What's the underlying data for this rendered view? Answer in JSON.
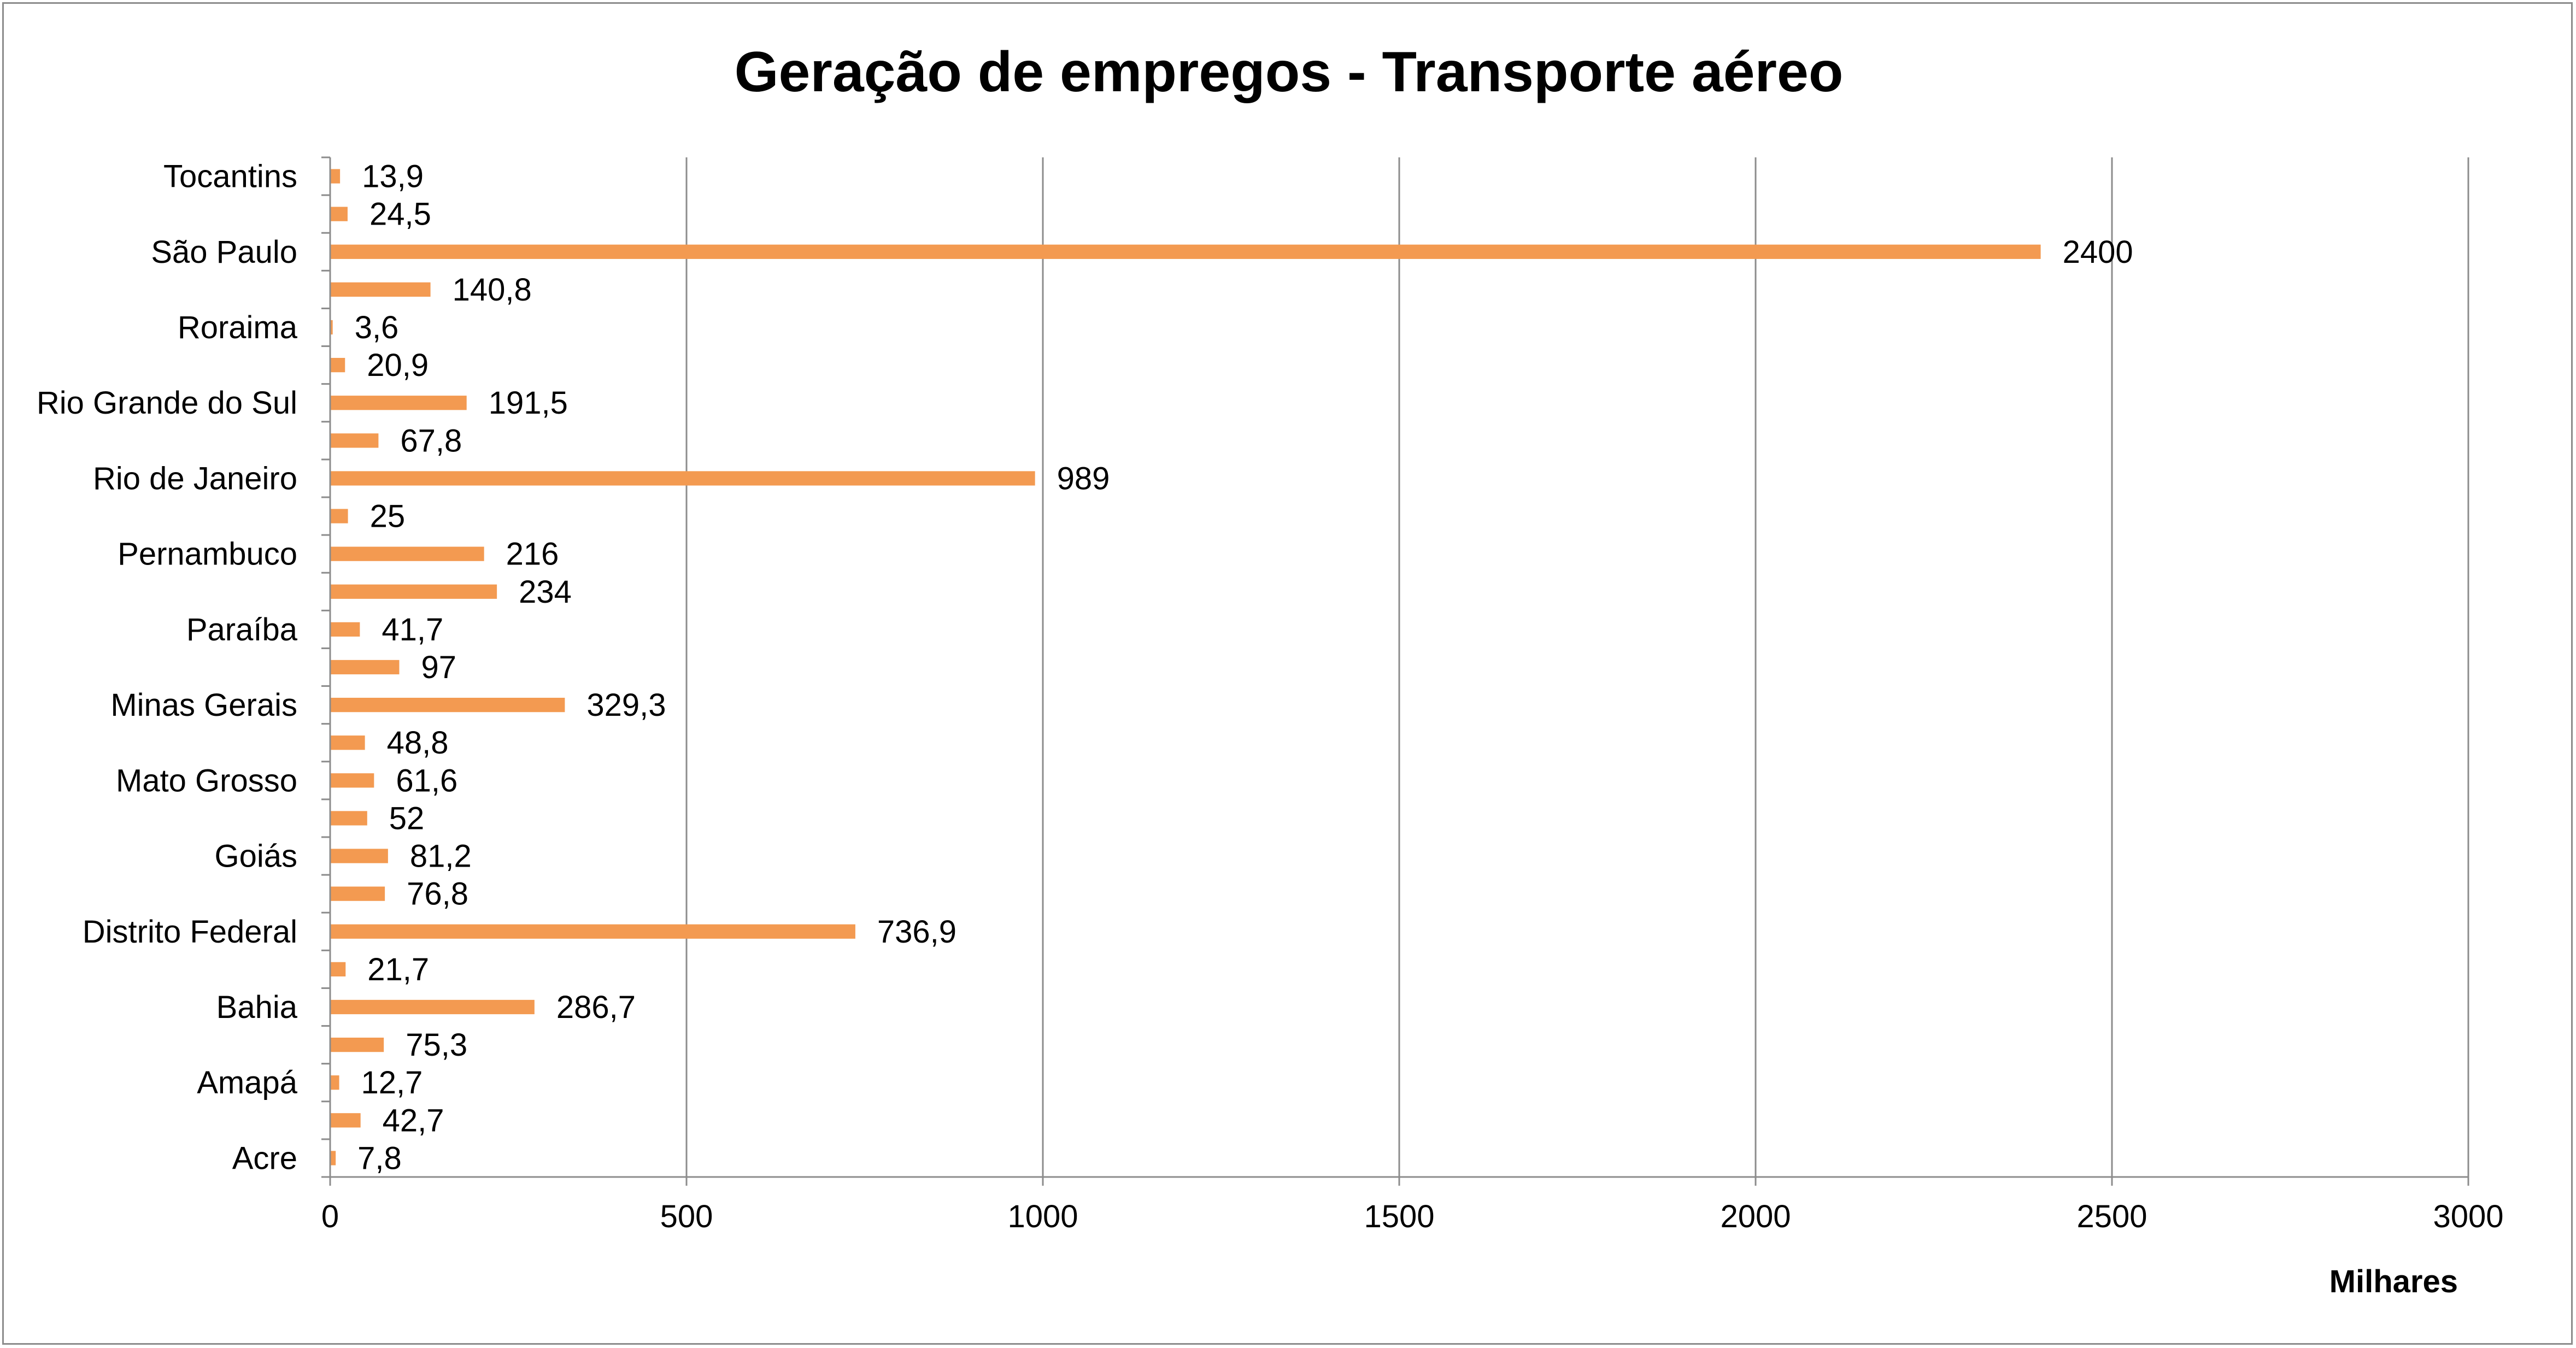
{
  "chart_data": {
    "type": "bar",
    "orientation": "horizontal",
    "title": "Geração de empregos - Transporte aéreo",
    "xlabel": "Milhares",
    "ylabel": "",
    "xlim": [
      0,
      3000
    ],
    "xticks": [
      0,
      500,
      1000,
      1500,
      2000,
      2500,
      3000
    ],
    "grid": "vertical major gridlines",
    "legend": "none",
    "bar_color": "#F39A51",
    "categories": [
      "Acre",
      "",
      "Amapá",
      "",
      "Bahia",
      "",
      "Distrito Federal",
      "",
      "Goiás",
      "",
      "Mato Grosso",
      "",
      "Minas Gerais",
      "",
      "Paraíba",
      "",
      "Pernambuco",
      "",
      "Rio de Janeiro",
      "",
      "Rio Grande do Sul",
      "",
      "Roraima",
      "",
      "São Paulo",
      "",
      "Tocantins"
    ],
    "values": [
      7.8,
      42.7,
      12.7,
      75.3,
      286.7,
      21.7,
      736.9,
      76.8,
      81.2,
      52,
      61.6,
      48.8,
      329.3,
      97,
      41.7,
      234,
      216,
      25,
      989,
      67.8,
      191.5,
      20.9,
      3.6,
      140.8,
      2400,
      24.5,
      13.9
    ],
    "value_labels": [
      "7,8",
      "42,7",
      "12,7",
      "75,3",
      "286,7",
      "21,7",
      "736,9",
      "76,8",
      "81,2",
      "52",
      "61,6",
      "48,8",
      "329,3",
      "97",
      "41,7",
      "234",
      "216",
      "25",
      "989",
      "67,8",
      "191,5",
      "20,9",
      "3,6",
      "140,8",
      "2400",
      "24,5",
      "13,9"
    ]
  }
}
